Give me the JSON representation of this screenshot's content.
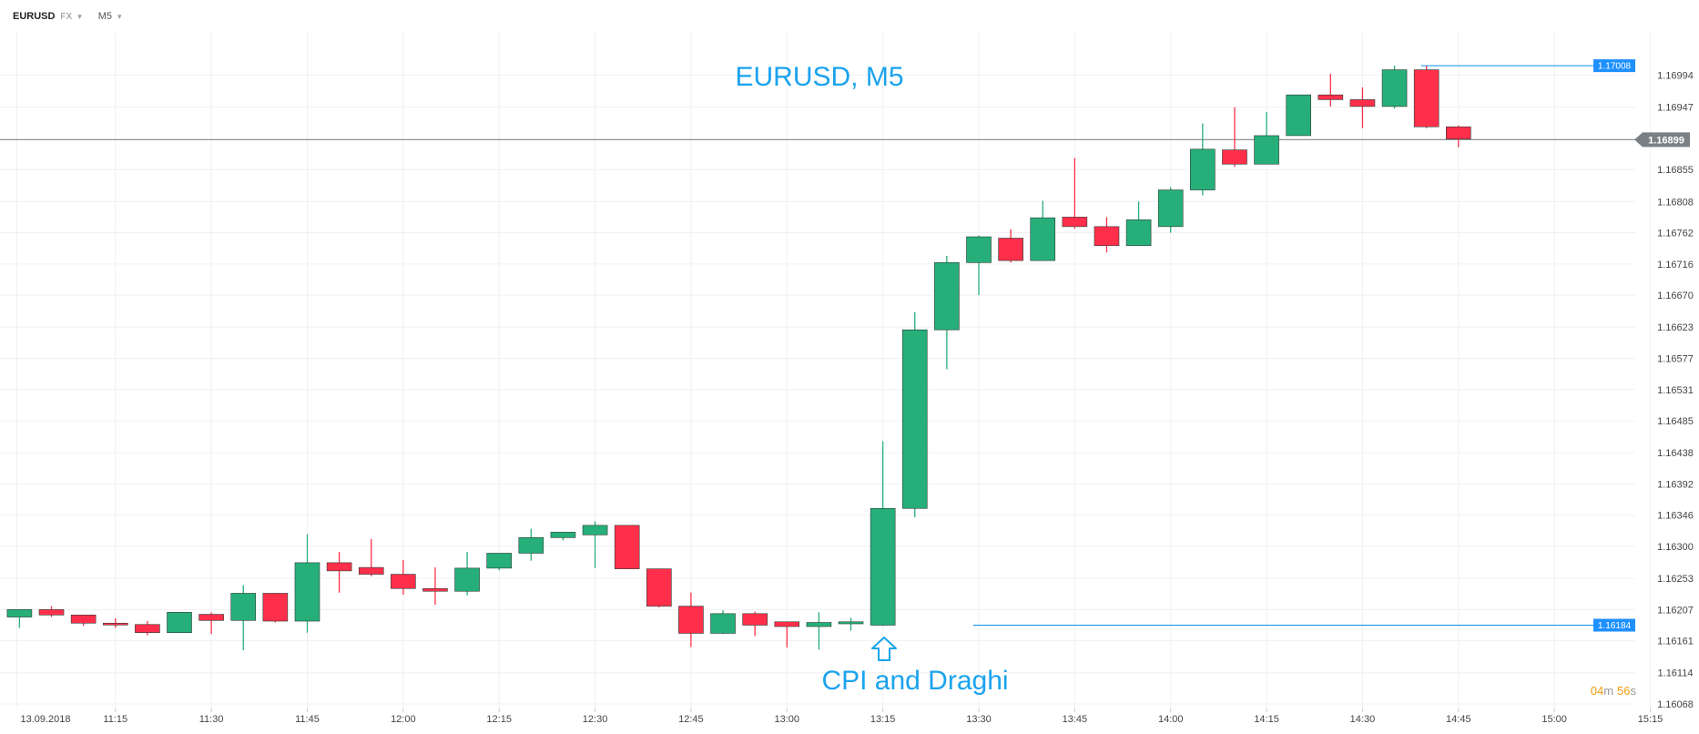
{
  "toolbar": {
    "symbol": "EURUSD",
    "market": "FX",
    "timeframe": "M5"
  },
  "countdown": {
    "minutes": "04",
    "m_label": "m",
    "seconds": "56",
    "s_label": "s"
  },
  "colors": {
    "up": "#26af79",
    "down": "#ff2f4b",
    "level_line": "#0a8fe8",
    "annotation": "#1aa3ee",
    "current_price": "#8e9397",
    "countdown": "#f39c12",
    "grid": "#f0f0f0"
  },
  "chart_data": {
    "type": "candlestick",
    "title": "EURUSD, M5",
    "annotation": "CPI and Draghi",
    "annotation_icon": "up-arrow-icon",
    "x_start_label": "13.09.2018",
    "xticks": [
      "11:15",
      "11:30",
      "11:45",
      "12:00",
      "12:15",
      "12:30",
      "12:45",
      "13:00",
      "13:15",
      "13:30",
      "13:45",
      "14:00",
      "14:15",
      "14:30",
      "14:45",
      "15:00",
      "15:15"
    ],
    "yticks": [
      "1.16994",
      "1.16947",
      "1.16855",
      "1.16808",
      "1.16762",
      "1.16716",
      "1.16670",
      "1.16623",
      "1.16577",
      "1.16531",
      "1.16485",
      "1.16438",
      "1.16392",
      "1.16346",
      "1.16300",
      "1.16253",
      "1.16207",
      "1.16161",
      "1.16114",
      "1.16068"
    ],
    "ylim": [
      1.16068,
      1.17035
    ],
    "grid": true,
    "current_price": {
      "value": 1.16899,
      "label": "1.16899"
    },
    "levels": [
      {
        "value": 1.17008,
        "label": "1.17008",
        "from_time": "14:40"
      },
      {
        "value": 1.16184,
        "label": "1.16184",
        "from_time": "13:30"
      }
    ],
    "candles": [
      {
        "t": "11:00",
        "o": 1.16196,
        "h": 1.16207,
        "l": 1.1618,
        "c": 1.16207
      },
      {
        "t": "11:05",
        "o": 1.16207,
        "h": 1.16212,
        "l": 1.16196,
        "c": 1.16199
      },
      {
        "t": "11:10",
        "o": 1.16199,
        "h": 1.16199,
        "l": 1.16183,
        "c": 1.16187
      },
      {
        "t": "11:15",
        "o": 1.16187,
        "h": 1.16194,
        "l": 1.1618,
        "c": 1.16185
      },
      {
        "t": "11:20",
        "o": 1.16185,
        "h": 1.1619,
        "l": 1.16169,
        "c": 1.16173
      },
      {
        "t": "11:25",
        "o": 1.16173,
        "h": 1.16203,
        "l": 1.16173,
        "c": 1.16203
      },
      {
        "t": "11:30",
        "o": 1.162,
        "h": 1.16203,
        "l": 1.16171,
        "c": 1.16191
      },
      {
        "t": "11:35",
        "o": 1.16191,
        "h": 1.16243,
        "l": 1.16147,
        "c": 1.16231
      },
      {
        "t": "11:40",
        "o": 1.16231,
        "h": 1.16231,
        "l": 1.16188,
        "c": 1.1619
      },
      {
        "t": "11:45",
        "o": 1.1619,
        "h": 1.16318,
        "l": 1.16173,
        "c": 1.16276
      },
      {
        "t": "11:50",
        "o": 1.16276,
        "h": 1.16292,
        "l": 1.16232,
        "c": 1.16264
      },
      {
        "t": "11:55",
        "o": 1.16269,
        "h": 1.16311,
        "l": 1.16256,
        "c": 1.16259
      },
      {
        "t": "12:00",
        "o": 1.16259,
        "h": 1.1628,
        "l": 1.16229,
        "c": 1.16238
      },
      {
        "t": "12:05",
        "o": 1.16238,
        "h": 1.16269,
        "l": 1.16214,
        "c": 1.16234
      },
      {
        "t": "12:10",
        "o": 1.16234,
        "h": 1.16292,
        "l": 1.16228,
        "c": 1.16268
      },
      {
        "t": "12:15",
        "o": 1.16268,
        "h": 1.1629,
        "l": 1.16265,
        "c": 1.1629
      },
      {
        "t": "12:20",
        "o": 1.1629,
        "h": 1.16326,
        "l": 1.16279,
        "c": 1.16313
      },
      {
        "t": "12:25",
        "o": 1.16313,
        "h": 1.16321,
        "l": 1.16309,
        "c": 1.16321
      },
      {
        "t": "12:30",
        "o": 1.16317,
        "h": 1.16337,
        "l": 1.16268,
        "c": 1.16331
      },
      {
        "t": "12:35",
        "o": 1.16331,
        "h": 1.16331,
        "l": 1.16267,
        "c": 1.16267
      },
      {
        "t": "12:40",
        "o": 1.16267,
        "h": 1.16267,
        "l": 1.1621,
        "c": 1.16212
      },
      {
        "t": "12:45",
        "o": 1.16212,
        "h": 1.16232,
        "l": 1.16152,
        "c": 1.16172
      },
      {
        "t": "12:50",
        "o": 1.16172,
        "h": 1.16206,
        "l": 1.16171,
        "c": 1.16201
      },
      {
        "t": "12:55",
        "o": 1.16201,
        "h": 1.16204,
        "l": 1.16168,
        "c": 1.16184
      },
      {
        "t": "13:00",
        "o": 1.16189,
        "h": 1.16189,
        "l": 1.16151,
        "c": 1.16182
      },
      {
        "t": "13:05",
        "o": 1.16182,
        "h": 1.16203,
        "l": 1.16148,
        "c": 1.16188
      },
      {
        "t": "13:10",
        "o": 1.16186,
        "h": 1.16195,
        "l": 1.16176,
        "c": 1.16189
      },
      {
        "t": "13:15",
        "o": 1.16184,
        "h": 1.16455,
        "l": 1.16183,
        "c": 1.16356
      },
      {
        "t": "13:20",
        "o": 1.16356,
        "h": 1.16645,
        "l": 1.16343,
        "c": 1.16619
      },
      {
        "t": "13:25",
        "o": 1.16619,
        "h": 1.16728,
        "l": 1.16561,
        "c": 1.16718
      },
      {
        "t": "13:30",
        "o": 1.16718,
        "h": 1.16758,
        "l": 1.1667,
        "c": 1.16756
      },
      {
        "t": "13:35",
        "o": 1.16754,
        "h": 1.16767,
        "l": 1.16718,
        "c": 1.16721
      },
      {
        "t": "13:40",
        "o": 1.16721,
        "h": 1.16809,
        "l": 1.16721,
        "c": 1.16784
      },
      {
        "t": "13:45",
        "o": 1.16785,
        "h": 1.16872,
        "l": 1.16768,
        "c": 1.16771
      },
      {
        "t": "13:50",
        "o": 1.16771,
        "h": 1.16785,
        "l": 1.16733,
        "c": 1.16743
      },
      {
        "t": "13:55",
        "o": 1.16743,
        "h": 1.16808,
        "l": 1.16743,
        "c": 1.16781
      },
      {
        "t": "14:00",
        "o": 1.16771,
        "h": 1.16829,
        "l": 1.16762,
        "c": 1.16825
      },
      {
        "t": "14:05",
        "o": 1.16825,
        "h": 1.16923,
        "l": 1.16817,
        "c": 1.16885
      },
      {
        "t": "14:10",
        "o": 1.16884,
        "h": 1.16947,
        "l": 1.16859,
        "c": 1.16863
      },
      {
        "t": "14:15",
        "o": 1.16863,
        "h": 1.1694,
        "l": 1.16863,
        "c": 1.16905
      },
      {
        "t": "14:20",
        "o": 1.16905,
        "h": 1.16965,
        "l": 1.16905,
        "c": 1.16965
      },
      {
        "t": "14:25",
        "o": 1.16965,
        "h": 1.16996,
        "l": 1.16948,
        "c": 1.16958
      },
      {
        "t": "14:30",
        "o": 1.16958,
        "h": 1.16976,
        "l": 1.16916,
        "c": 1.16948
      },
      {
        "t": "14:35",
        "o": 1.16948,
        "h": 1.17008,
        "l": 1.16945,
        "c": 1.17002
      },
      {
        "t": "14:40",
        "o": 1.17002,
        "h": 1.17008,
        "l": 1.16916,
        "c": 1.16918
      },
      {
        "t": "14:45",
        "o": 1.16918,
        "h": 1.1692,
        "l": 1.16888,
        "c": 1.169
      }
    ]
  }
}
